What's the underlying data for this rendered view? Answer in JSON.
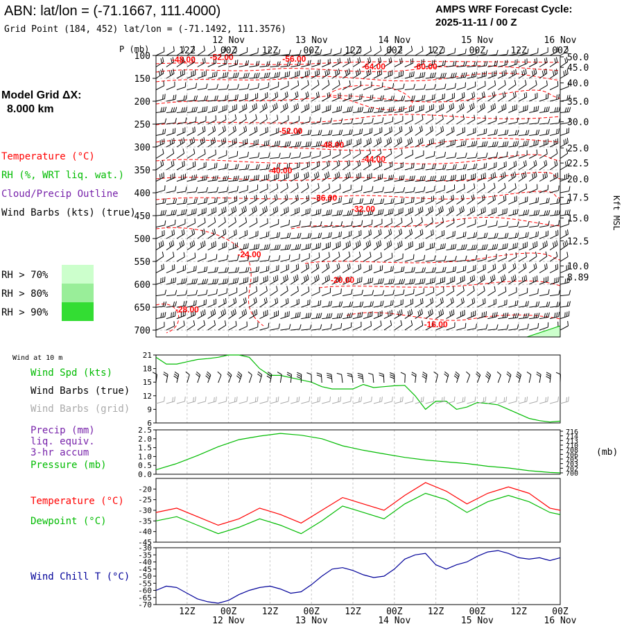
{
  "header": {
    "station_title": "ABN:  lat/lon = (-71.1667, 111.4000)",
    "grid_point": "Grid Point (184, 452) lat/lon = (-71.1492, 111.3576)",
    "cycle_line1": "AMPS WRF Forecast Cycle:",
    "cycle_line2": "2025-11-11 / 00  Z"
  },
  "time_axis": {
    "hour_labels": [
      "12Z",
      "00Z",
      "12Z",
      "00Z",
      "12Z",
      "00Z",
      "12Z",
      "00Z",
      "12Z",
      "00Z"
    ],
    "hour_positions_h": [
      12,
      24,
      36,
      48,
      60,
      72,
      84,
      96,
      108,
      120
    ],
    "date_labels": [
      "12 Nov",
      "13 Nov",
      "14 Nov",
      "15 Nov",
      "16 Nov"
    ],
    "date_positions_h": [
      24,
      48,
      72,
      96,
      120
    ],
    "range_h": [
      3,
      120
    ]
  },
  "legend": {
    "model_grid_label": "Model Grid ΔX:",
    "model_grid_value": "8.000 km",
    "temperature": "Temperature (°C)",
    "rh": "RH (%, WRT liq. wat.)",
    "cloud": "Cloud/Precip Outline",
    "wind_barbs": "Wind Barbs (kts) (true)",
    "rh_levels": [
      "RH > 70%",
      "RH > 80%",
      "RH > 90%"
    ],
    "rh_colors": [
      "#ccffcc",
      "#99ee99",
      "#33dd33"
    ]
  },
  "colors": {
    "temperature": "#ff0000",
    "green": "#00bb00",
    "purple": "#7722aa",
    "navy": "#000099",
    "grey": "#aaaaaa",
    "grid": "#c8c8c8"
  },
  "chart_data": [
    {
      "type": "cross-section",
      "ylabel": "P (mb)",
      "right_label": "Kft MSL",
      "pressure_ticks": [
        100,
        150,
        200,
        250,
        300,
        350,
        400,
        450,
        500,
        550,
        600,
        650,
        700
      ],
      "ylim": [
        100,
        715
      ],
      "height_ticks_kft": [
        {
          "label": "50.0",
          "p": 103
        },
        {
          "label": "45.0",
          "p": 126
        },
        {
          "label": "40.0",
          "p": 160
        },
        {
          "label": "35.0",
          "p": 200
        },
        {
          "label": "30.0",
          "p": 245
        },
        {
          "label": "25.0",
          "p": 302
        },
        {
          "label": "22.5",
          "p": 335
        },
        {
          "label": "20.0",
          "p": 370
        },
        {
          "label": "17.5",
          "p": 410
        },
        {
          "label": "15.0",
          "p": 455
        },
        {
          "label": "12.5",
          "p": 505
        },
        {
          "label": "10.0",
          "p": 560
        },
        {
          "label": "8.89",
          "p": 584
        }
      ],
      "temperature_labels": [
        {
          "text": "-48.00",
          "t": 11,
          "p": 120
        },
        {
          "text": "-52.00",
          "t": 22,
          "p": 113
        },
        {
          "text": "-56.00",
          "t": 43,
          "p": 118
        },
        {
          "text": "-64.00",
          "t": 66,
          "p": 140
        },
        {
          "text": "-60.00",
          "t": 81,
          "p": 140
        },
        {
          "text": "-52.00",
          "t": 42,
          "p": 328
        },
        {
          "text": "-48.00",
          "t": 54,
          "p": 369
        },
        {
          "text": "-44.00",
          "t": 66,
          "p": 410
        },
        {
          "text": "-40.00",
          "t": 39,
          "p": 443
        },
        {
          "text": "-36.00",
          "t": 52,
          "p": 523
        },
        {
          "text": "-32.00",
          "t": 63,
          "p": 555
        },
        {
          "text": "-24.00",
          "t": 30,
          "p": 688
        },
        {
          "text": "-20.00",
          "t": 57,
          "p": 762
        },
        {
          "text": "-28.00",
          "t": 12,
          "p": 848
        },
        {
          "text": "-16.00",
          "t": 84,
          "p": 892
        }
      ],
      "wind_barbs": "black barbs every 3 h at each pressure level (10-30 kt, westerly to north-westerly)"
    },
    {
      "type": "line",
      "title": "Wind at 10 m",
      "series_label": "Wind Spd (kts)",
      "barb_label": "Wind Barbs (true)",
      "grid_barb_label": "Wind Barbs (grid)",
      "ylim": [
        6,
        21
      ],
      "y_ticks": [
        6,
        9,
        12,
        15,
        18,
        21
      ],
      "x": [
        3,
        6,
        9,
        12,
        15,
        18,
        21,
        24,
        27,
        30,
        33,
        36,
        39,
        42,
        45,
        48,
        51,
        54,
        57,
        60,
        63,
        66,
        69,
        72,
        75,
        78,
        81,
        84,
        87,
        90,
        93,
        96,
        99,
        102,
        105,
        108,
        111,
        114,
        117,
        120
      ],
      "values": [
        20.5,
        19,
        19,
        19.5,
        20,
        20.2,
        20.5,
        21,
        21,
        20.5,
        18,
        16.5,
        16.5,
        16,
        15.5,
        15,
        14,
        13.5,
        13.5,
        13.5,
        14.5,
        13.8,
        14,
        14.2,
        14.3,
        12,
        9,
        10.8,
        10.8,
        9,
        9.5,
        10.5,
        10.3,
        10,
        9,
        8,
        7,
        6.5,
        6.2,
        6.4
      ]
    },
    {
      "type": "line",
      "precip_label": "Precip (mm)",
      "precip_sub1": "liq. equiv.",
      "precip_sub2": "3-hr accum",
      "pressure_label": "Pressure (mb)",
      "ylim": [
        0,
        2.5
      ],
      "y_ticks": [
        "0.0",
        "0.5",
        "1.0",
        "1.5",
        "2.0",
        "2.5"
      ],
      "right_ticks": [
        "716",
        "714",
        "713",
        "710",
        "708",
        "706",
        "705",
        "703",
        "702",
        "700"
      ],
      "right_unit": "(mb)",
      "x": [
        3,
        9,
        15,
        21,
        27,
        33,
        39,
        45,
        51,
        57,
        63,
        69,
        75,
        81,
        87,
        93,
        99,
        105,
        111,
        117,
        120
      ],
      "values": [
        0.25,
        0.6,
        1.05,
        1.55,
        1.95,
        2.15,
        2.3,
        2.2,
        2.0,
        1.6,
        1.35,
        1.15,
        0.95,
        0.8,
        0.7,
        0.6,
        0.45,
        0.35,
        0.2,
        0.1,
        0.08
      ],
      "precip_values": []
    },
    {
      "type": "line",
      "temperature_label": "Temperature (°C)",
      "dewpoint_label": "Dewpoint (°C)",
      "ylim": [
        -45,
        -15
      ],
      "y_ticks": [
        -45,
        -40,
        -35,
        -30,
        -25,
        -20
      ],
      "x": [
        3,
        9,
        15,
        21,
        27,
        33,
        39,
        45,
        51,
        57,
        63,
        69,
        75,
        81,
        87,
        93,
        99,
        105,
        111,
        117,
        120
      ],
      "temperature": [
        -31,
        -29,
        -33,
        -37,
        -34,
        -29,
        -32,
        -36,
        -30,
        -24,
        -27,
        -30,
        -23,
        -17,
        -21,
        -27,
        -22,
        -19,
        -22,
        -29,
        -30
      ],
      "dewpoint": [
        -35,
        -33,
        -37,
        -41,
        -38,
        -34,
        -37,
        -41,
        -35,
        -28,
        -31,
        -34,
        -27,
        -22,
        -25,
        -31,
        -26,
        -23,
        -26,
        -31,
        -32
      ]
    },
    {
      "type": "line",
      "chill_label": "Wind Chill T (°C)",
      "ylim": [
        -70,
        -30
      ],
      "y_ticks": [
        -70,
        -65,
        -60,
        -55,
        -50,
        -45,
        -40,
        -35,
        -30
      ],
      "x": [
        3,
        6,
        9,
        12,
        15,
        18,
        21,
        24,
        27,
        30,
        33,
        36,
        39,
        42,
        45,
        48,
        51,
        54,
        57,
        60,
        63,
        66,
        69,
        72,
        75,
        78,
        81,
        84,
        87,
        90,
        93,
        96,
        99,
        102,
        105,
        108,
        111,
        114,
        117,
        120
      ],
      "values": [
        -60,
        -57,
        -58,
        -62,
        -66,
        -68,
        -69,
        -67,
        -63,
        -60,
        -58,
        -57,
        -59,
        -62,
        -61,
        -56,
        -50,
        -45,
        -44,
        -46,
        -49,
        -51,
        -50,
        -45,
        -38,
        -35,
        -34,
        -42,
        -45,
        -42,
        -40,
        -36,
        -33,
        -32,
        -34,
        -37,
        -38,
        -37,
        -39,
        -37
      ]
    }
  ]
}
